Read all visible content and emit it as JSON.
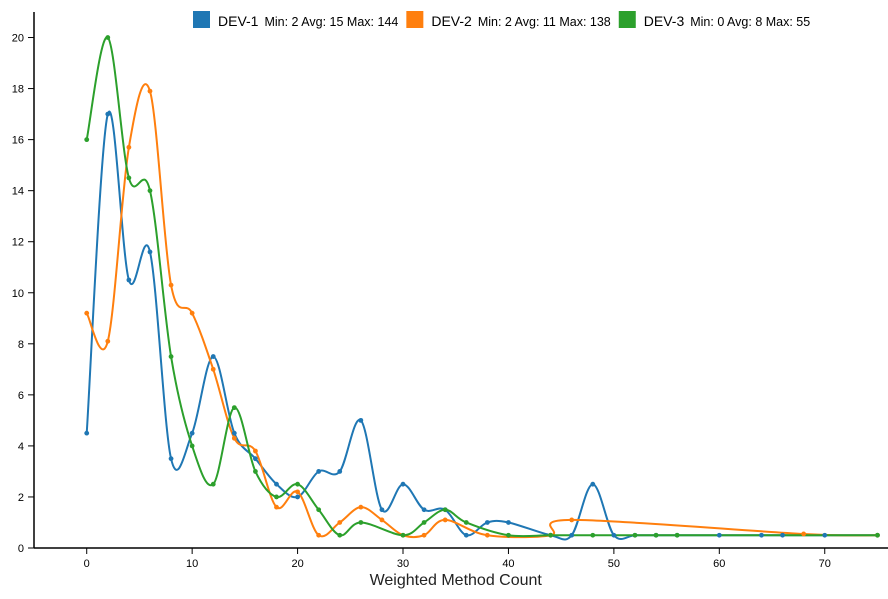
{
  "chart_data": {
    "type": "line",
    "title": "",
    "xlabel": "Weighted Method Count",
    "ylabel": "",
    "xlim": [
      -5,
      76
    ],
    "ylim": [
      0,
      21
    ],
    "xticks": [
      0,
      10,
      20,
      30,
      40,
      50,
      60,
      70
    ],
    "yticks": [
      0,
      2,
      4,
      6,
      8,
      10,
      12,
      14,
      16,
      18,
      20
    ],
    "grid": false,
    "legend_position": "top-right",
    "series": [
      {
        "name": "DEV-1",
        "stats": "Min: 2 Avg: 15 Max: 144",
        "color": "#1f77b4",
        "x": [
          0,
          2,
          4,
          6,
          8,
          10,
          12,
          14,
          16,
          18,
          20,
          22,
          24,
          26,
          28,
          30,
          32,
          34,
          36,
          38,
          40,
          44,
          46,
          48,
          50,
          52,
          54,
          56,
          60,
          64,
          66,
          70,
          75
        ],
        "y": [
          4.5,
          17,
          10.5,
          11.6,
          3.5,
          4.5,
          7.5,
          4.5,
          3.5,
          2.5,
          2,
          3,
          3,
          5,
          1.5,
          2.5,
          1.5,
          1.5,
          0.5,
          1,
          1,
          0.5,
          0.5,
          2.5,
          0.5,
          0.5,
          0.5,
          0.5,
          0.5,
          0.5,
          0.5,
          0.5,
          0.5
        ]
      },
      {
        "name": "DEV-2",
        "stats": "Min: 2 Avg: 11 Max: 138",
        "color": "#ff7f0e",
        "x": [
          0,
          2,
          4,
          6,
          8,
          10,
          12,
          14,
          16,
          18,
          20,
          22,
          24,
          26,
          28,
          30,
          32,
          34,
          38,
          44,
          46,
          68,
          75
        ],
        "y": [
          9.2,
          8.1,
          15.7,
          17.9,
          10.3,
          9.2,
          7,
          4.3,
          3.8,
          1.6,
          2.2,
          0.5,
          1,
          1.6,
          1.1,
          0.5,
          0.5,
          1.1,
          0.5,
          0.5,
          1.1,
          0.55,
          0.5
        ]
      },
      {
        "name": "DEV-3",
        "stats": "Min: 0 Avg: 8 Max: 55",
        "color": "#2ca02c",
        "x": [
          0,
          2,
          4,
          6,
          8,
          10,
          12,
          14,
          16,
          18,
          20,
          22,
          24,
          26,
          30,
          32,
          34,
          36,
          40,
          44,
          48,
          52,
          54,
          56,
          75
        ],
        "y": [
          16,
          20,
          14.5,
          14,
          7.5,
          4,
          2.5,
          5.5,
          3,
          2,
          2.5,
          1.5,
          0.5,
          1,
          0.5,
          1,
          1.5,
          1,
          0.5,
          0.5,
          0.5,
          0.5,
          0.5,
          0.5,
          0.5
        ]
      }
    ]
  }
}
